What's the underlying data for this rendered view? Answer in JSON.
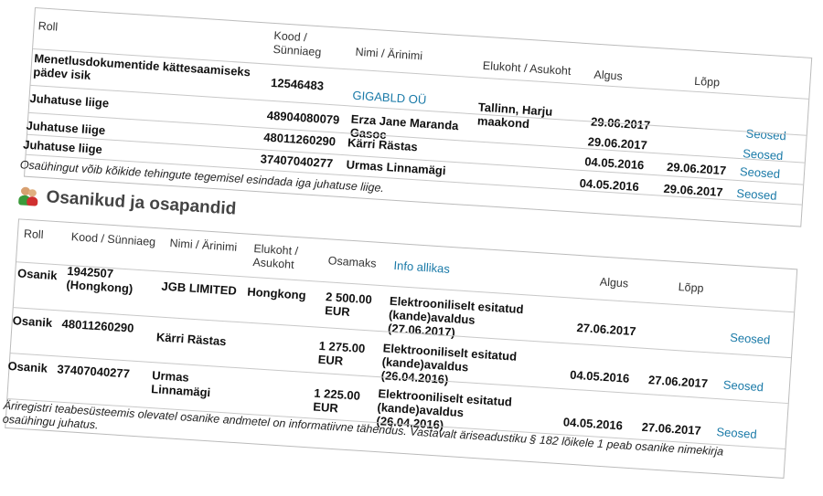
{
  "board_table": {
    "headers": {
      "roll": "Roll",
      "kood": "Kood / Sünniaeg",
      "nimi": "Nimi / Ärinimi",
      "elukoht": "Elukoht / Asukoht",
      "algus": "Algus",
      "lopp": "Lõpp"
    },
    "rows": [
      {
        "roll": "Menetlusdokumentide kättesaamiseks pädev isik",
        "kood": "12546483",
        "nimi": "GIGABLD OÜ",
        "elukoht": "Tallinn, Harju maakond",
        "algus": "29.06.2017",
        "lopp": "",
        "link": "Seosed"
      },
      {
        "roll": "Juhatuse liige",
        "kood": "48904080079",
        "nimi": "Erza Jane Maranda Gasoc",
        "elukoht": "",
        "algus": "29.06.2017",
        "lopp": "",
        "link": "Seosed"
      },
      {
        "roll": "Juhatuse liige",
        "kood": "48011260290",
        "nimi": "Kärri Rästas",
        "elukoht": "",
        "algus": "04.05.2016",
        "lopp": "29.06.2017",
        "link": "Seosed"
      },
      {
        "roll": "Juhatuse liige",
        "kood": "37407040277",
        "nimi": "Urmas Linnamägi",
        "elukoht": "",
        "algus": "04.05.2016",
        "lopp": "29.06.2017",
        "link": "Seosed"
      }
    ],
    "note": "Osaühingut võib kõikide tehingute tegemisel esindada iga juhatuse liige."
  },
  "shareholders": {
    "title": "Osanikud ja osapandid",
    "icon": "people-icon",
    "headers": {
      "roll": "Roll",
      "kood": "Kood / Sünniaeg",
      "nimi": "Nimi / Ärinimi",
      "elukoht": "Elukoht / Asukoht",
      "osamaks": "Osamaks",
      "info": "Info allikas",
      "algus": "Algus",
      "lopp": "Lõpp"
    },
    "rows": [
      {
        "roll": "Osanik",
        "kood": "1942507 (Hongkong)",
        "nimi": "JGB LIMITED",
        "elukoht": "Hongkong",
        "osamaks": "2 500.00 EUR",
        "info": "Elektrooniliselt esitatud (kande)avaldus (27.06.2017)",
        "algus": "27.06.2017",
        "lopp": "",
        "link": "Seosed"
      },
      {
        "roll": "Osanik",
        "kood": "48011260290",
        "nimi": "Kärri Rästas",
        "elukoht": "",
        "osamaks": "1 275.00 EUR",
        "info": "Elektrooniliselt esitatud (kande)avaldus (26.04.2016)",
        "algus": "04.05.2016",
        "lopp": "27.06.2017",
        "link": "Seosed"
      },
      {
        "roll": "Osanik",
        "kood": "37407040277",
        "nimi": "Urmas Linnamägi",
        "elukoht": "",
        "osamaks": "1 225.00 EUR",
        "info": "Elektrooniliselt esitatud (kande)avaldus (26.04.2016)",
        "algus": "04.05.2016",
        "lopp": "27.06.2017",
        "link": "Seosed"
      }
    ],
    "note": "Äriregistri teabesüsteemis olevatel osanike andmetel on informatiivne tähendus. Vastavalt äriseadustiku § 182 lõikele 1 peab osanike nimekirja osaühingu juhatus."
  },
  "colors": {
    "link": "#1a7aa8",
    "border": "#bbbbbb"
  }
}
